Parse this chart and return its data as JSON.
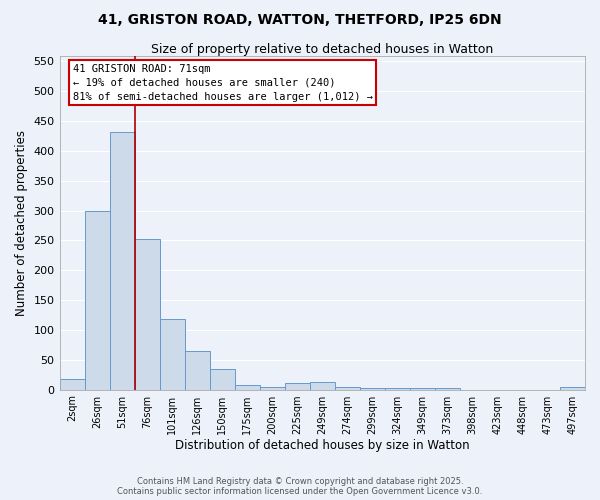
{
  "title_line1": "41, GRISTON ROAD, WATTON, THETFORD, IP25 6DN",
  "title_line2": "Size of property relative to detached houses in Watton",
  "xlabel": "Distribution of detached houses by size in Watton",
  "ylabel": "Number of detached properties",
  "categories": [
    "2sqm",
    "26sqm",
    "51sqm",
    "76sqm",
    "101sqm",
    "126sqm",
    "150sqm",
    "175sqm",
    "200sqm",
    "225sqm",
    "249sqm",
    "274sqm",
    "299sqm",
    "324sqm",
    "349sqm",
    "373sqm",
    "398sqm",
    "423sqm",
    "448sqm",
    "473sqm",
    "497sqm"
  ],
  "values": [
    18,
    300,
    432,
    253,
    118,
    64,
    35,
    8,
    5,
    11,
    13,
    5,
    2,
    2,
    2,
    3,
    0,
    0,
    0,
    0,
    5
  ],
  "bar_color": "#ccdaea",
  "bar_edge_color": "#6699cc",
  "background_color": "#edf1f9",
  "grid_color": "#ffffff",
  "red_line_x": 2.5,
  "annotation_text": "41 GRISTON ROAD: 71sqm\n← 19% of detached houses are smaller (240)\n81% of semi-detached houses are larger (1,012) →",
  "annotation_box_facecolor": "#ffffff",
  "annotation_box_edgecolor": "#cc0000",
  "footer_line1": "Contains HM Land Registry data © Crown copyright and database right 2025.",
  "footer_line2": "Contains public sector information licensed under the Open Government Licence v3.0.",
  "ylim": [
    0,
    560
  ],
  "yticks": [
    0,
    50,
    100,
    150,
    200,
    250,
    300,
    350,
    400,
    450,
    500,
    550
  ]
}
